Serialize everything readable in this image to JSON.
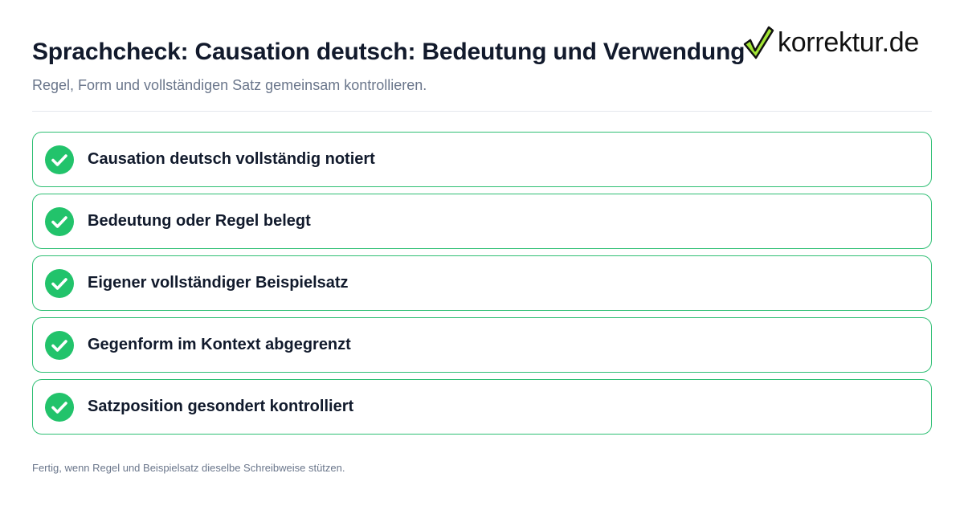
{
  "header": {
    "title": "Sprachcheck: Causation deutsch: Bedeutung und Verwendung",
    "subtitle": "Regel, Form und vollständigen Satz gemeinsam kontrollieren."
  },
  "logo": {
    "text": "korrektur.de",
    "icon": "checkmark-icon",
    "colors": {
      "check_fill": "#a3e635",
      "check_outline": "#111111"
    }
  },
  "checklist": {
    "items": [
      {
        "label": "Causation deutsch vollständig notiert",
        "checked": true,
        "icon": "check-circle-icon"
      },
      {
        "label": "Bedeutung oder Regel belegt",
        "checked": true,
        "icon": "check-circle-icon"
      },
      {
        "label": "Eigener vollständiger Beispielsatz",
        "checked": true,
        "icon": "check-circle-icon"
      },
      {
        "label": "Gegenform im Kontext abgegrenzt",
        "checked": true,
        "icon": "check-circle-icon"
      },
      {
        "label": "Satzposition gesondert kontrolliert",
        "checked": true,
        "icon": "check-circle-icon"
      }
    ]
  },
  "footer": {
    "text": "Fertig, wenn Regel und Beispielsatz dieselbe Schreibweise stützen."
  },
  "colors": {
    "accent": "#22c36b",
    "border": "#2fbf74",
    "title": "#121a2c",
    "muted": "#6a768b"
  }
}
